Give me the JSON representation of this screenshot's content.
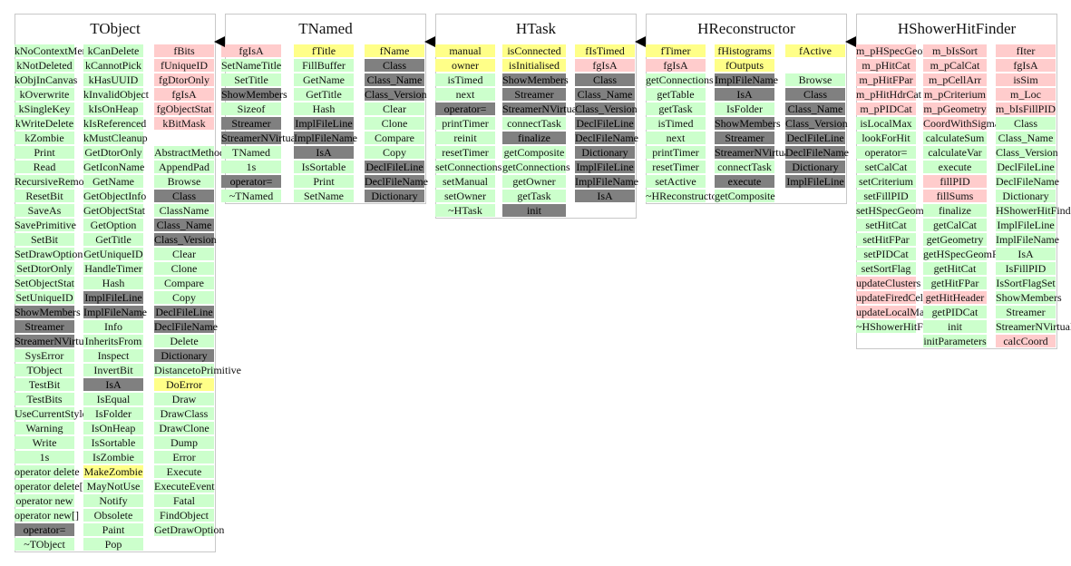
{
  "palette": {
    "green": "#ccffcc",
    "pink": "#ffcccc",
    "yellow": "#ffff88",
    "gray": "#808080"
  },
  "classes": [
    {
      "name": "TObject",
      "columns": [
        [
          [
            "kNoContextMenu",
            "green"
          ],
          [
            "kNotDeleted",
            "green"
          ],
          [
            "kObjInCanvas",
            "green"
          ],
          [
            "kOverwrite",
            "green"
          ],
          [
            "kSingleKey",
            "green"
          ],
          [
            "kWriteDelete",
            "green"
          ],
          [
            "kZombie",
            "green"
          ],
          [
            "Print",
            "green"
          ],
          [
            "Read",
            "green"
          ],
          [
            "RecursiveRemove",
            "green"
          ],
          [
            "ResetBit",
            "green"
          ],
          [
            "SaveAs",
            "green"
          ],
          [
            "SavePrimitive",
            "green"
          ],
          [
            "SetBit",
            "green"
          ],
          [
            "SetDrawOption",
            "green"
          ],
          [
            "SetDtorOnly",
            "green"
          ],
          [
            "SetObjectStat",
            "green"
          ],
          [
            "SetUniqueID",
            "green"
          ],
          [
            "ShowMembers",
            "gray"
          ],
          [
            "Streamer",
            "gray"
          ],
          [
            "StreamerNVirtual",
            "gray"
          ],
          [
            "SysError",
            "green"
          ],
          [
            "TObject",
            "green"
          ],
          [
            "TestBit",
            "green"
          ],
          [
            "TestBits",
            "green"
          ],
          [
            "UseCurrentStyle",
            "green"
          ],
          [
            "Warning",
            "green"
          ],
          [
            "Write",
            "green"
          ],
          [
            "1s",
            "green"
          ],
          [
            "operator delete",
            "green"
          ],
          [
            "operator delete[]",
            "green"
          ],
          [
            "operator new",
            "green"
          ],
          [
            "operator new[]",
            "green"
          ],
          [
            "operator=",
            "gray"
          ],
          [
            "~TObject",
            "green"
          ]
        ],
        [
          [
            "kCanDelete",
            "green"
          ],
          [
            "kCannotPick",
            "green"
          ],
          [
            "kHasUUID",
            "green"
          ],
          [
            "kInvalidObject",
            "green"
          ],
          [
            "kIsOnHeap",
            "green"
          ],
          [
            "kIsReferenced",
            "green"
          ],
          [
            "kMustCleanup",
            "green"
          ],
          [
            "GetDtorOnly",
            "green"
          ],
          [
            "GetIconName",
            "green"
          ],
          [
            "GetName",
            "green"
          ],
          [
            "GetObjectInfo",
            "green"
          ],
          [
            "GetObjectStat",
            "green"
          ],
          [
            "GetOption",
            "green"
          ],
          [
            "GetTitle",
            "green"
          ],
          [
            "GetUniqueID",
            "green"
          ],
          [
            "HandleTimer",
            "green"
          ],
          [
            "Hash",
            "green"
          ],
          [
            "ImplFileLine",
            "gray"
          ],
          [
            "ImplFileName",
            "gray"
          ],
          [
            "Info",
            "green"
          ],
          [
            "InheritsFrom",
            "green"
          ],
          [
            "Inspect",
            "green"
          ],
          [
            "InvertBit",
            "green"
          ],
          [
            "IsA",
            "gray"
          ],
          [
            "IsEqual",
            "green"
          ],
          [
            "IsFolder",
            "green"
          ],
          [
            "IsOnHeap",
            "green"
          ],
          [
            "IsSortable",
            "green"
          ],
          [
            "IsZombie",
            "green"
          ],
          [
            "MakeZombie",
            "yellow"
          ],
          [
            "MayNotUse",
            "green"
          ],
          [
            "Notify",
            "green"
          ],
          [
            "Obsolete",
            "green"
          ],
          [
            "Paint",
            "green"
          ],
          [
            "Pop",
            "green"
          ]
        ],
        [
          [
            "fBits",
            "pink"
          ],
          [
            "fUniqueID",
            "pink"
          ],
          [
            "fgDtorOnly",
            "pink"
          ],
          [
            "fgIsA",
            "pink"
          ],
          [
            "fgObjectStat",
            "pink"
          ],
          [
            "kBitMask",
            "pink"
          ],
          [
            "",
            ""
          ],
          [
            "AbstractMethod",
            "green"
          ],
          [
            "AppendPad",
            "green"
          ],
          [
            "Browse",
            "green"
          ],
          [
            "Class",
            "gray"
          ],
          [
            "ClassName",
            "green"
          ],
          [
            "Class_Name",
            "gray"
          ],
          [
            "Class_Version",
            "gray"
          ],
          [
            "Clear",
            "green"
          ],
          [
            "Clone",
            "green"
          ],
          [
            "Compare",
            "green"
          ],
          [
            "Copy",
            "green"
          ],
          [
            "DeclFileLine",
            "gray"
          ],
          [
            "DeclFileName",
            "gray"
          ],
          [
            "Delete",
            "green"
          ],
          [
            "Dictionary",
            "gray"
          ],
          [
            "DistancetoPrimitive",
            "green"
          ],
          [
            "DoError",
            "yellow"
          ],
          [
            "Draw",
            "green"
          ],
          [
            "DrawClass",
            "green"
          ],
          [
            "DrawClone",
            "green"
          ],
          [
            "Dump",
            "green"
          ],
          [
            "Error",
            "green"
          ],
          [
            "Execute",
            "green"
          ],
          [
            "ExecuteEvent",
            "green"
          ],
          [
            "Fatal",
            "green"
          ],
          [
            "FindObject",
            "green"
          ],
          [
            "GetDrawOption",
            "green"
          ]
        ]
      ]
    },
    {
      "name": "TNamed",
      "columns": [
        [
          [
            "fgIsA",
            "pink"
          ],
          [
            "SetNameTitle",
            "green"
          ],
          [
            "SetTitle",
            "green"
          ],
          [
            "ShowMembers",
            "gray"
          ],
          [
            "Sizeof",
            "green"
          ],
          [
            "Streamer",
            "gray"
          ],
          [
            "StreamerNVirtual",
            "gray"
          ],
          [
            "TNamed",
            "green"
          ],
          [
            "1s",
            "green"
          ],
          [
            "operator=",
            "gray"
          ],
          [
            "~TNamed",
            "green"
          ]
        ],
        [
          [
            "fTitle",
            "yellow"
          ],
          [
            "FillBuffer",
            "green"
          ],
          [
            "GetName",
            "green"
          ],
          [
            "GetTitle",
            "green"
          ],
          [
            "Hash",
            "green"
          ],
          [
            "ImplFileLine",
            "gray"
          ],
          [
            "ImplFileName",
            "gray"
          ],
          [
            "IsA",
            "gray"
          ],
          [
            "IsSortable",
            "green"
          ],
          [
            "Print",
            "green"
          ],
          [
            "SetName",
            "green"
          ]
        ],
        [
          [
            "fName",
            "yellow"
          ],
          [
            "Class",
            "gray"
          ],
          [
            "Class_Name",
            "gray"
          ],
          [
            "Class_Version",
            "gray"
          ],
          [
            "Clear",
            "green"
          ],
          [
            "Clone",
            "green"
          ],
          [
            "Compare",
            "green"
          ],
          [
            "Copy",
            "green"
          ],
          [
            "DeclFileLine",
            "gray"
          ],
          [
            "DeclFileName",
            "gray"
          ],
          [
            "Dictionary",
            "gray"
          ]
        ]
      ]
    },
    {
      "name": "HTask",
      "columns": [
        [
          [
            "manual",
            "yellow"
          ],
          [
            "owner",
            "yellow"
          ],
          [
            "isTimed",
            "green"
          ],
          [
            "next",
            "green"
          ],
          [
            "operator=",
            "gray"
          ],
          [
            "printTimer",
            "green"
          ],
          [
            "reinit",
            "green"
          ],
          [
            "resetTimer",
            "green"
          ],
          [
            "setConnections",
            "green"
          ],
          [
            "setManual",
            "green"
          ],
          [
            "setOwner",
            "green"
          ],
          [
            "~HTask",
            "green"
          ]
        ],
        [
          [
            "isConnected",
            "yellow"
          ],
          [
            "isInitialised",
            "yellow"
          ],
          [
            "ShowMembers",
            "gray"
          ],
          [
            "Streamer",
            "gray"
          ],
          [
            "StreamerNVirtual",
            "gray"
          ],
          [
            "connectTask",
            "green"
          ],
          [
            "finalize",
            "gray"
          ],
          [
            "getComposite",
            "green"
          ],
          [
            "getConnections",
            "green"
          ],
          [
            "getOwner",
            "green"
          ],
          [
            "getTask",
            "green"
          ],
          [
            "init",
            "gray"
          ]
        ],
        [
          [
            "fIsTimed",
            "yellow"
          ],
          [
            "fgIsA",
            "pink"
          ],
          [
            "Class",
            "gray"
          ],
          [
            "Class_Name",
            "gray"
          ],
          [
            "Class_Version",
            "gray"
          ],
          [
            "DeclFileLine",
            "gray"
          ],
          [
            "DeclFileName",
            "gray"
          ],
          [
            "Dictionary",
            "gray"
          ],
          [
            "ImplFileLine",
            "gray"
          ],
          [
            "ImplFileName",
            "gray"
          ],
          [
            "IsA",
            "gray"
          ]
        ]
      ]
    },
    {
      "name": "HReconstructor",
      "columns": [
        [
          [
            "fTimer",
            "yellow"
          ],
          [
            "fgIsA",
            "pink"
          ],
          [
            "getConnections",
            "green"
          ],
          [
            "getTable",
            "green"
          ],
          [
            "getTask",
            "green"
          ],
          [
            "isTimed",
            "green"
          ],
          [
            "next",
            "green"
          ],
          [
            "printTimer",
            "green"
          ],
          [
            "resetTimer",
            "green"
          ],
          [
            "setActive",
            "green"
          ],
          [
            "~HReconstructor",
            "green"
          ]
        ],
        [
          [
            "fHistograms",
            "yellow"
          ],
          [
            "fOutputs",
            "yellow"
          ],
          [
            "ImplFileName",
            "gray"
          ],
          [
            "IsA",
            "gray"
          ],
          [
            "IsFolder",
            "green"
          ],
          [
            "ShowMembers",
            "gray"
          ],
          [
            "Streamer",
            "gray"
          ],
          [
            "StreamerNVirtual",
            "gray"
          ],
          [
            "connectTask",
            "green"
          ],
          [
            "execute",
            "gray"
          ],
          [
            "getComposite",
            "green"
          ]
        ],
        [
          [
            "fActive",
            "yellow"
          ],
          [
            "",
            ""
          ],
          [
            "Browse",
            "green"
          ],
          [
            "Class",
            "gray"
          ],
          [
            "Class_Name",
            "gray"
          ],
          [
            "Class_Version",
            "gray"
          ],
          [
            "DeclFileLine",
            "gray"
          ],
          [
            "DeclFileName",
            "gray"
          ],
          [
            "Dictionary",
            "gray"
          ],
          [
            "ImplFileLine",
            "gray"
          ]
        ]
      ]
    },
    {
      "name": "HShowerHitFinder",
      "columns": [
        [
          [
            "m_pHSpecGeomPar",
            "pink"
          ],
          [
            "m_pHitCat",
            "pink"
          ],
          [
            "m_pHitFPar",
            "pink"
          ],
          [
            "m_pHitHdrCat",
            "pink"
          ],
          [
            "m_pPIDCat",
            "pink"
          ],
          [
            "isLocalMax",
            "green"
          ],
          [
            "lookForHit",
            "green"
          ],
          [
            "operator=",
            "green"
          ],
          [
            "setCalCat",
            "green"
          ],
          [
            "setCriterium",
            "green"
          ],
          [
            "setFillPID",
            "green"
          ],
          [
            "setHSpecGeomPar",
            "green"
          ],
          [
            "setHitCat",
            "green"
          ],
          [
            "setHitFPar",
            "green"
          ],
          [
            "setPIDCat",
            "green"
          ],
          [
            "setSortFlag",
            "green"
          ],
          [
            "updateClusters",
            "pink"
          ],
          [
            "updateFiredCells",
            "pink"
          ],
          [
            "updateLocalMax",
            "pink"
          ],
          [
            "~HShowerHitFinder",
            "green"
          ]
        ],
        [
          [
            "m_bIsSort",
            "pink"
          ],
          [
            "m_pCalCat",
            "pink"
          ],
          [
            "m_pCellArr",
            "pink"
          ],
          [
            "m_pCriterium",
            "pink"
          ],
          [
            "m_pGeometry",
            "pink"
          ],
          [
            "CoordWithSigma",
            "pink"
          ],
          [
            "calculateSum",
            "green"
          ],
          [
            "calculateVar",
            "green"
          ],
          [
            "execute",
            "green"
          ],
          [
            "fillPID",
            "pink"
          ],
          [
            "fillSums",
            "pink"
          ],
          [
            "finalize",
            "green"
          ],
          [
            "getCalCat",
            "green"
          ],
          [
            "getGeometry",
            "green"
          ],
          [
            "getHSpecGeomPar",
            "green"
          ],
          [
            "getHitCat",
            "green"
          ],
          [
            "getHitFPar",
            "green"
          ],
          [
            "getHitHeader",
            "pink"
          ],
          [
            "getPIDCat",
            "green"
          ],
          [
            "init",
            "green"
          ],
          [
            "initParameters",
            "green"
          ]
        ],
        [
          [
            "fIter",
            "pink"
          ],
          [
            "fgIsA",
            "pink"
          ],
          [
            "isSim",
            "pink"
          ],
          [
            "m_Loc",
            "pink"
          ],
          [
            "m_bIsFillPID",
            "pink"
          ],
          [
            "Class",
            "green"
          ],
          [
            "Class_Name",
            "green"
          ],
          [
            "Class_Version",
            "green"
          ],
          [
            "DeclFileLine",
            "green"
          ],
          [
            "DeclFileName",
            "green"
          ],
          [
            "Dictionary",
            "green"
          ],
          [
            "HShowerHitFinder",
            "green"
          ],
          [
            "ImplFileLine",
            "green"
          ],
          [
            "ImplFileName",
            "green"
          ],
          [
            "IsA",
            "green"
          ],
          [
            "IsFillPID",
            "green"
          ],
          [
            "IsSortFlagSet",
            "green"
          ],
          [
            "ShowMembers",
            "green"
          ],
          [
            "Streamer",
            "green"
          ],
          [
            "StreamerNVirtual",
            "green"
          ],
          [
            "calcCoord",
            "pink"
          ]
        ]
      ]
    }
  ]
}
